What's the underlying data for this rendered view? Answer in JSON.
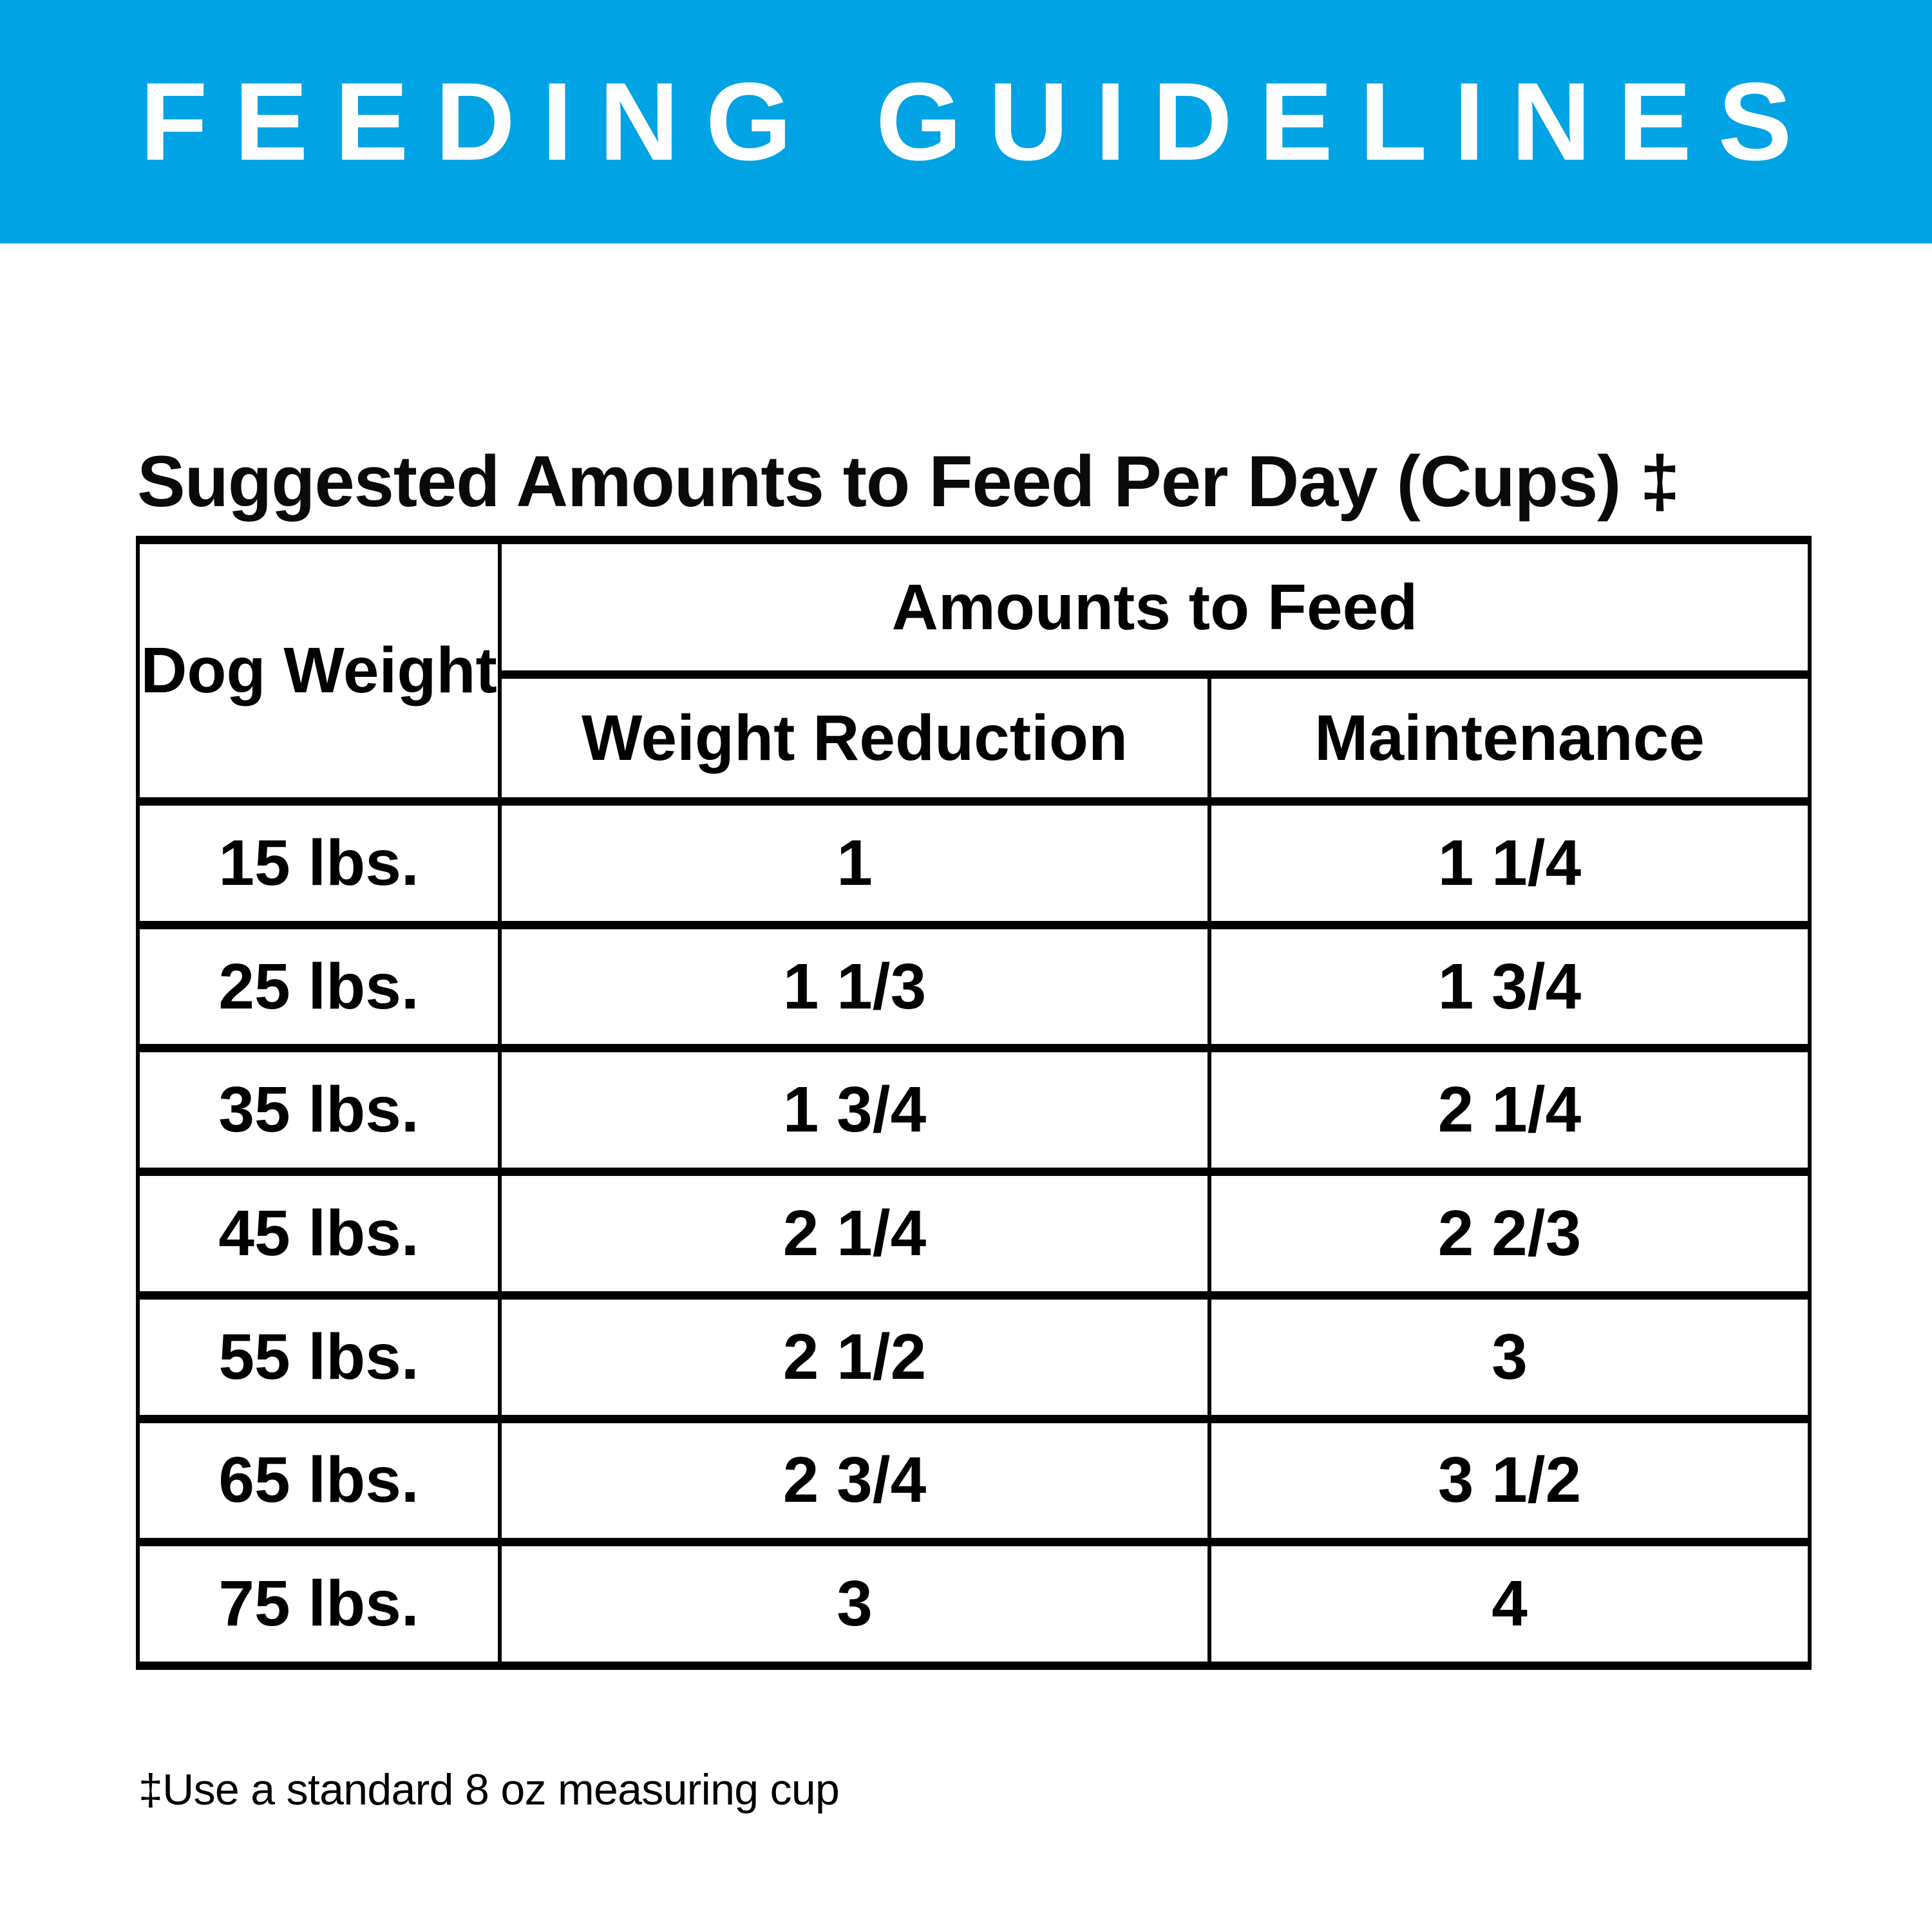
{
  "banner": {
    "title": "FEEDING GUIDELINES"
  },
  "section": {
    "title": "Suggested Amounts to Feed Per Day (Cups) ‡"
  },
  "table": {
    "corner_header": "Dog Weight",
    "group_header": "Amounts to Feed",
    "col_headers": [
      "Weight Reduction",
      "Maintenance"
    ],
    "rows": [
      {
        "weight": "15 lbs.",
        "weight_reduction": "1",
        "maintenance": "1 1/4"
      },
      {
        "weight": "25 lbs.",
        "weight_reduction": "1 1/3",
        "maintenance": "1 3/4"
      },
      {
        "weight": "35 lbs.",
        "weight_reduction": "1 3/4",
        "maintenance": "2 1/4"
      },
      {
        "weight": "45 lbs.",
        "weight_reduction": "2 1/4",
        "maintenance": "2 2/3"
      },
      {
        "weight": "55 lbs.",
        "weight_reduction": "2 1/2",
        "maintenance": "3"
      },
      {
        "weight": "65 lbs.",
        "weight_reduction": "2 3/4",
        "maintenance": "3 1/2"
      },
      {
        "weight": "75 lbs.",
        "weight_reduction": "3",
        "maintenance": "4"
      }
    ]
  },
  "footnote": "‡Use a standard 8 oz measuring cup",
  "colors": {
    "banner_bg": "#00A3E4",
    "banner_text": "#FFFFFF",
    "table_border": "#000000",
    "text": "#000000"
  }
}
